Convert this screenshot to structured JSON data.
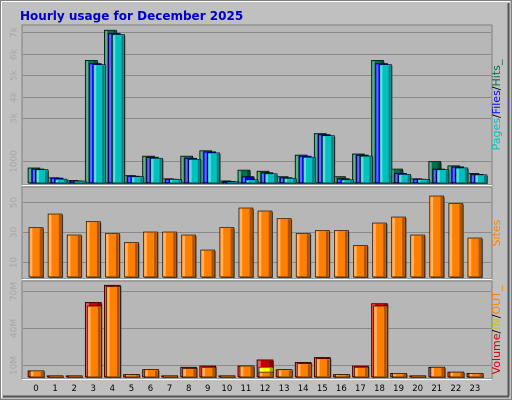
{
  "colors": {
    "background": "#c0c0c0",
    "panel": "#b7b7b7",
    "grid": "#8a8a8a",
    "title": "#0000cc",
    "tick": "#a6a6a6",
    "pages": "#00c0c0",
    "files": "#0000ff",
    "hits": "#007048",
    "sites": "#ff8000",
    "out": "#ffff00",
    "in": "#ff8000",
    "volume": "#cc0000"
  },
  "chart_data": {
    "title": "Hourly usage for December 2025",
    "type": "bar",
    "hours": [
      "0",
      "1",
      "2",
      "3",
      "4",
      "5",
      "6",
      "7",
      "8",
      "9",
      "10",
      "11",
      "12",
      "13",
      "14",
      "15",
      "16",
      "17",
      "18",
      "19",
      "20",
      "21",
      "22",
      "23"
    ],
    "panels": [
      {
        "id": "hits-files-pages",
        "axis_label_parts": [
          "Pages",
          "/",
          "Files",
          "/",
          "Hits",
          "_"
        ],
        "ticks": [
          {
            "label": "1000",
            "value": 1000
          },
          {
            "label": "3k",
            "value": 3000
          },
          {
            "label": "4k",
            "value": 4000
          },
          {
            "label": "5k",
            "value": 5000
          },
          {
            "label": "6k",
            "value": 6000
          },
          {
            "label": "7k",
            "value": 7000
          }
        ],
        "ymax": 7200,
        "series": [
          {
            "name": "Hits",
            "color_key": "hits",
            "values": [
              700,
              250,
              120,
              5700,
              7100,
              350,
              1250,
              200,
              1250,
              1500,
              100,
              600,
              550,
              300,
              1300,
              2300,
              300,
              1350,
              5700,
              650,
              200,
              1000,
              800,
              450
            ]
          },
          {
            "name": "Files",
            "color_key": "files",
            "values": [
              650,
              230,
              100,
              5550,
              6950,
              320,
              1200,
              180,
              1150,
              1450,
              70,
              300,
              480,
              250,
              1250,
              2250,
              200,
              1300,
              5550,
              450,
              180,
              650,
              750,
              400
            ]
          },
          {
            "name": "Pages",
            "color_key": "pages",
            "values": [
              620,
              180,
              90,
              5500,
              6900,
              300,
              1150,
              170,
              1100,
              1400,
              60,
              150,
              430,
              220,
              1200,
              2200,
              150,
              1250,
              5500,
              400,
              170,
              620,
              700,
              380
            ]
          }
        ]
      },
      {
        "id": "sites",
        "axis_label_parts": [
          "Sites"
        ],
        "ticks": [
          {
            "label": "10",
            "value": 10
          },
          {
            "label": "30",
            "value": 30
          },
          {
            "label": "50",
            "value": 50
          }
        ],
        "ymax": 58,
        "series": [
          {
            "name": "Sites",
            "color_key": "sites",
            "values": [
              33,
              42,
              28,
              37,
              29,
              23,
              30,
              30,
              28,
              18,
              33,
              46,
              44,
              39,
              29,
              31,
              31,
              21,
              36,
              40,
              28,
              54,
              49,
              26
            ]
          }
        ]
      },
      {
        "id": "volume",
        "axis_label_parts": [
          "Volume",
          "/",
          "IN",
          "/",
          "OUT",
          "_"
        ],
        "ticks": [
          {
            "label": "10M",
            "value": 10
          },
          {
            "label": "40M",
            "value": 40
          },
          {
            "label": "70M",
            "value": 70
          }
        ],
        "ymax": 76,
        "series": [
          {
            "name": "Volume",
            "color_key": "volume",
            "values": [
              5,
              1,
              1,
              61,
              75,
              2,
              6,
              1,
              8,
              9,
              1,
              9,
              14,
              6,
              12,
              16,
              2,
              9,
              60,
              3,
              1,
              8,
              4,
              3
            ]
          },
          {
            "name": "IN",
            "color_key": "out",
            "values": [
              0,
              0,
              0,
              0,
              0,
              0,
              0,
              0,
              0,
              0,
              0,
              0,
              8,
              0,
              0,
              0,
              0,
              0,
              0,
              0,
              0,
              0,
              0,
              0
            ]
          },
          {
            "name": "OUT",
            "color_key": "in",
            "values": [
              5,
              1,
              1,
              58,
              74,
              2,
              6,
              1,
              7,
              8,
              1,
              9,
              4,
              6,
              11,
              15,
              2,
              8,
              58,
              3,
              1,
              8,
              4,
              3
            ]
          }
        ]
      }
    ]
  }
}
